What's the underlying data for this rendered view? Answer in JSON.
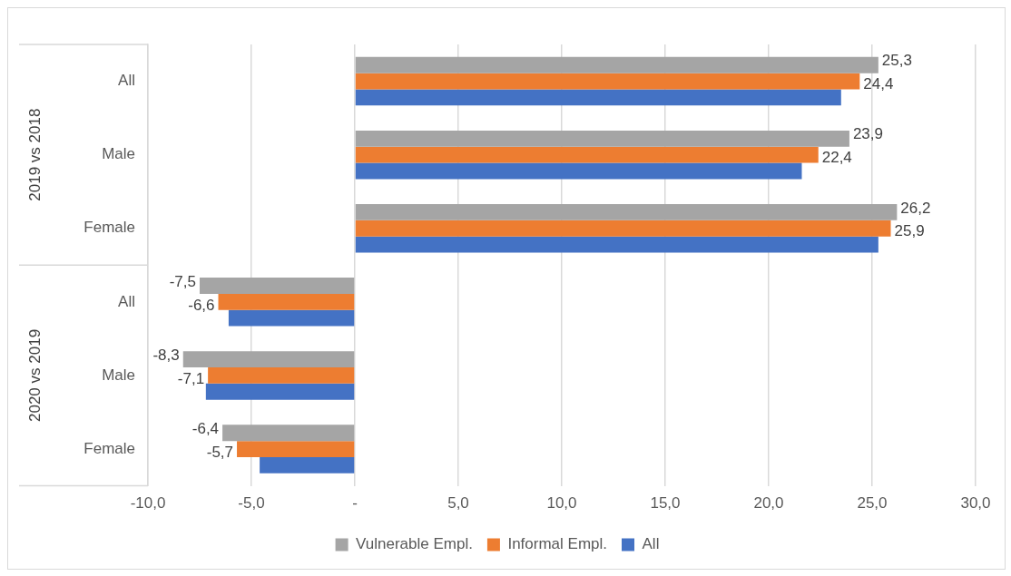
{
  "chart_data": {
    "type": "bar",
    "orientation": "horizontal",
    "categories": [
      "All",
      "Male",
      "Female",
      "All",
      "Male",
      "Female"
    ],
    "annotations": [
      "2019 vs 2018",
      "2020 vs 2019"
    ],
    "series": [
      {
        "name": "Vulnerable Empl.",
        "color": "#a5a5a5",
        "values": [
          25.3,
          23.9,
          26.2,
          -7.5,
          -8.3,
          -6.4
        ],
        "value_labels": [
          "25,3",
          "23,9",
          "26,2",
          "-7,5",
          "-8,3",
          "-6,4"
        ]
      },
      {
        "name": "Informal Empl.",
        "color": "#ed7d31",
        "values": [
          24.4,
          22.4,
          25.9,
          -6.6,
          -7.1,
          -5.7
        ],
        "value_labels": [
          "24,4",
          "22,4",
          "25,9",
          "-6,6",
          "-7,1",
          "-5,7"
        ]
      },
      {
        "name": "All",
        "color": "#4472c4",
        "values": [
          23.5,
          21.6,
          25.3,
          -6.1,
          -7.2,
          -4.6
        ]
      }
    ],
    "xlim": [
      -10,
      30
    ],
    "xticks": [
      {
        "value": -10,
        "label": "-10,0"
      },
      {
        "value": -5,
        "label": "-5,0"
      },
      {
        "value": 0,
        "label": "-"
      },
      {
        "value": 5,
        "label": "5,0"
      },
      {
        "value": 10,
        "label": "10,0"
      },
      {
        "value": 15,
        "label": "15,0"
      },
      {
        "value": 20,
        "label": "20,0"
      },
      {
        "value": 25,
        "label": "25,0"
      },
      {
        "value": 30,
        "label": "30,0"
      }
    ],
    "grid": "x",
    "legend": "bottom"
  }
}
